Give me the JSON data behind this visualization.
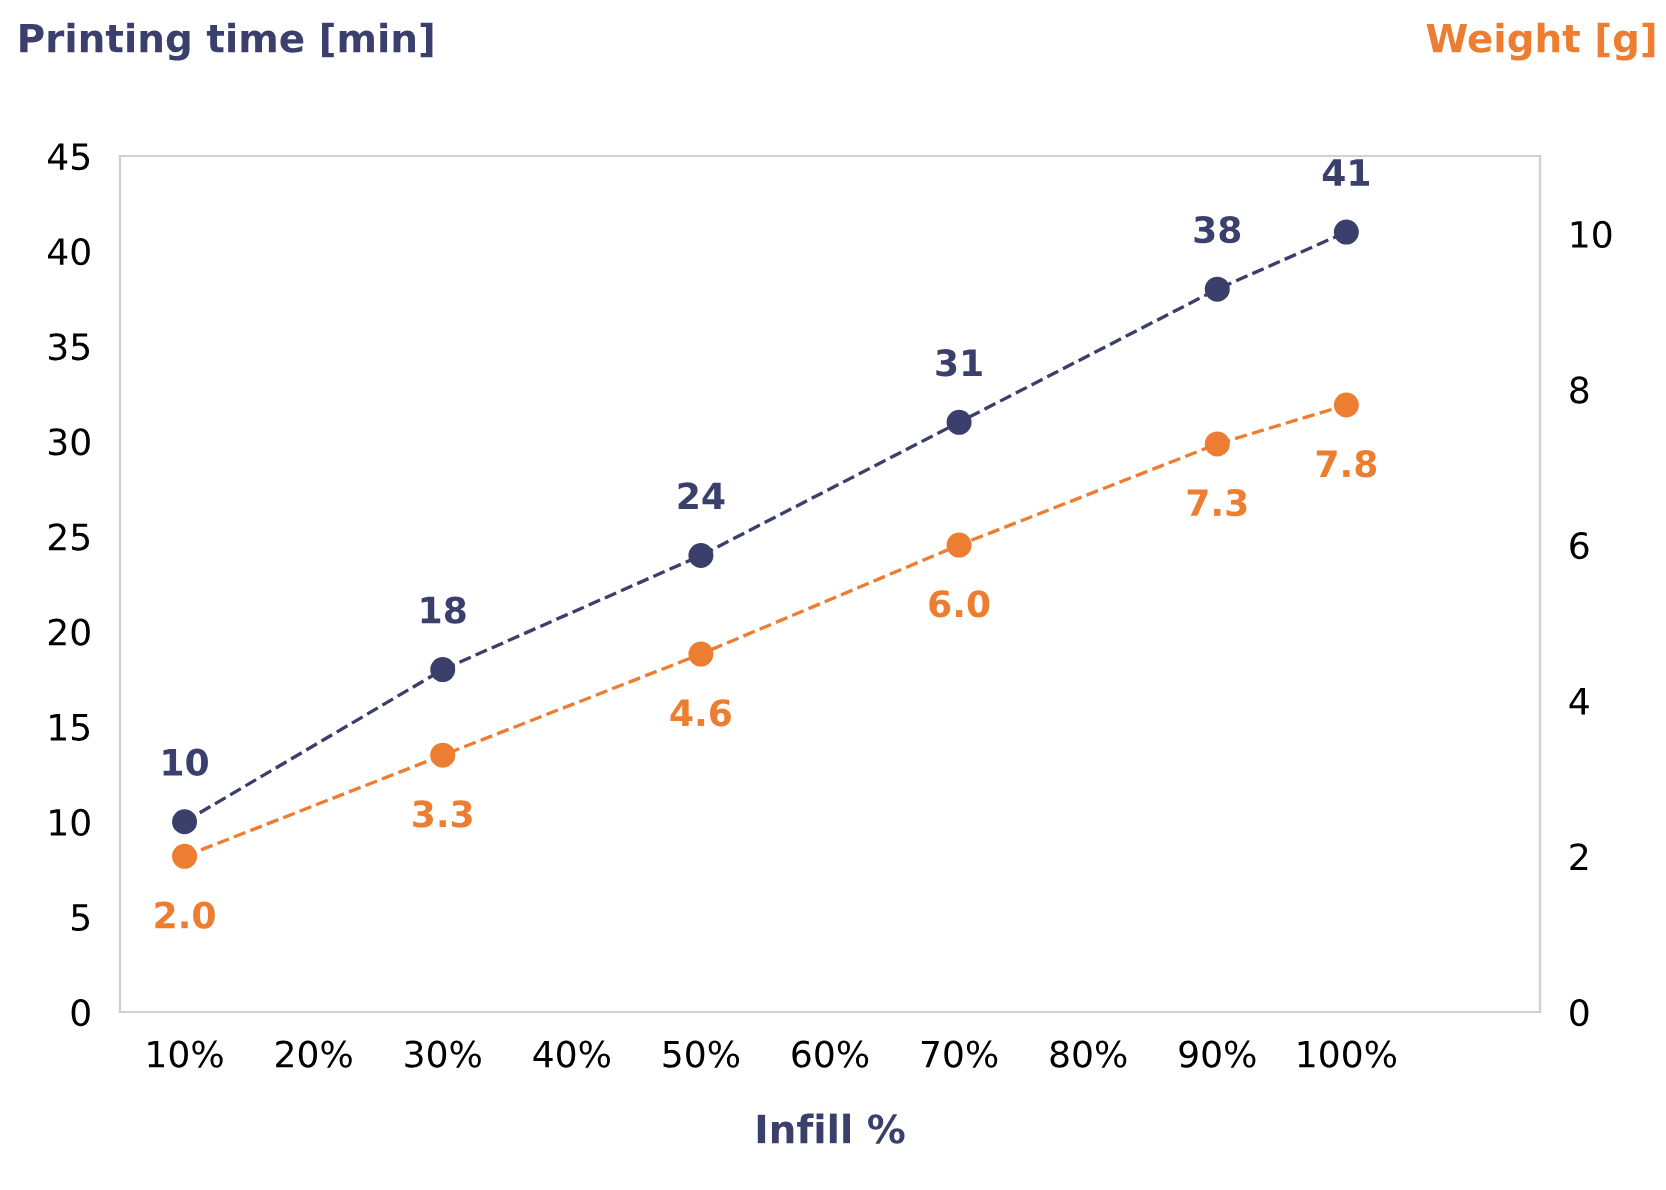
{
  "chart_data": {
    "type": "line",
    "xlabel": "Infill %",
    "ylabel": "Printing time [min]",
    "y2label": "Weight [g]",
    "categories": [
      "10%",
      "20%",
      "30%",
      "40%",
      "50%",
      "60%",
      "70%",
      "80%",
      "90%",
      "100%",
      null
    ],
    "ylim": [
      0,
      45
    ],
    "yticks": [
      0,
      5,
      10,
      15,
      20,
      25,
      30,
      35,
      40,
      45
    ],
    "y2lim": [
      0,
      11
    ],
    "y2ticks": [
      0,
      2,
      4,
      6,
      8,
      10
    ],
    "marker": "circle",
    "line_style": "dashed",
    "grid": false,
    "legend": false,
    "data_labels": true,
    "series": [
      {
        "color": "#3b3f6b",
        "values": [
          10,
          null,
          18,
          null,
          24,
          null,
          31,
          null,
          38,
          41,
          null
        ]
      },
      {
        "color": "#ed7d31",
        "axis": "y2",
        "values": [
          2.0,
          null,
          3.3,
          null,
          4.6,
          null,
          6.0,
          null,
          7.3,
          7.8,
          null
        ],
        "value_labels": [
          "2.0",
          null,
          "3.3",
          null,
          "4.6",
          null,
          "6.0",
          null,
          "7.3",
          "7.8",
          null
        ]
      }
    ]
  }
}
